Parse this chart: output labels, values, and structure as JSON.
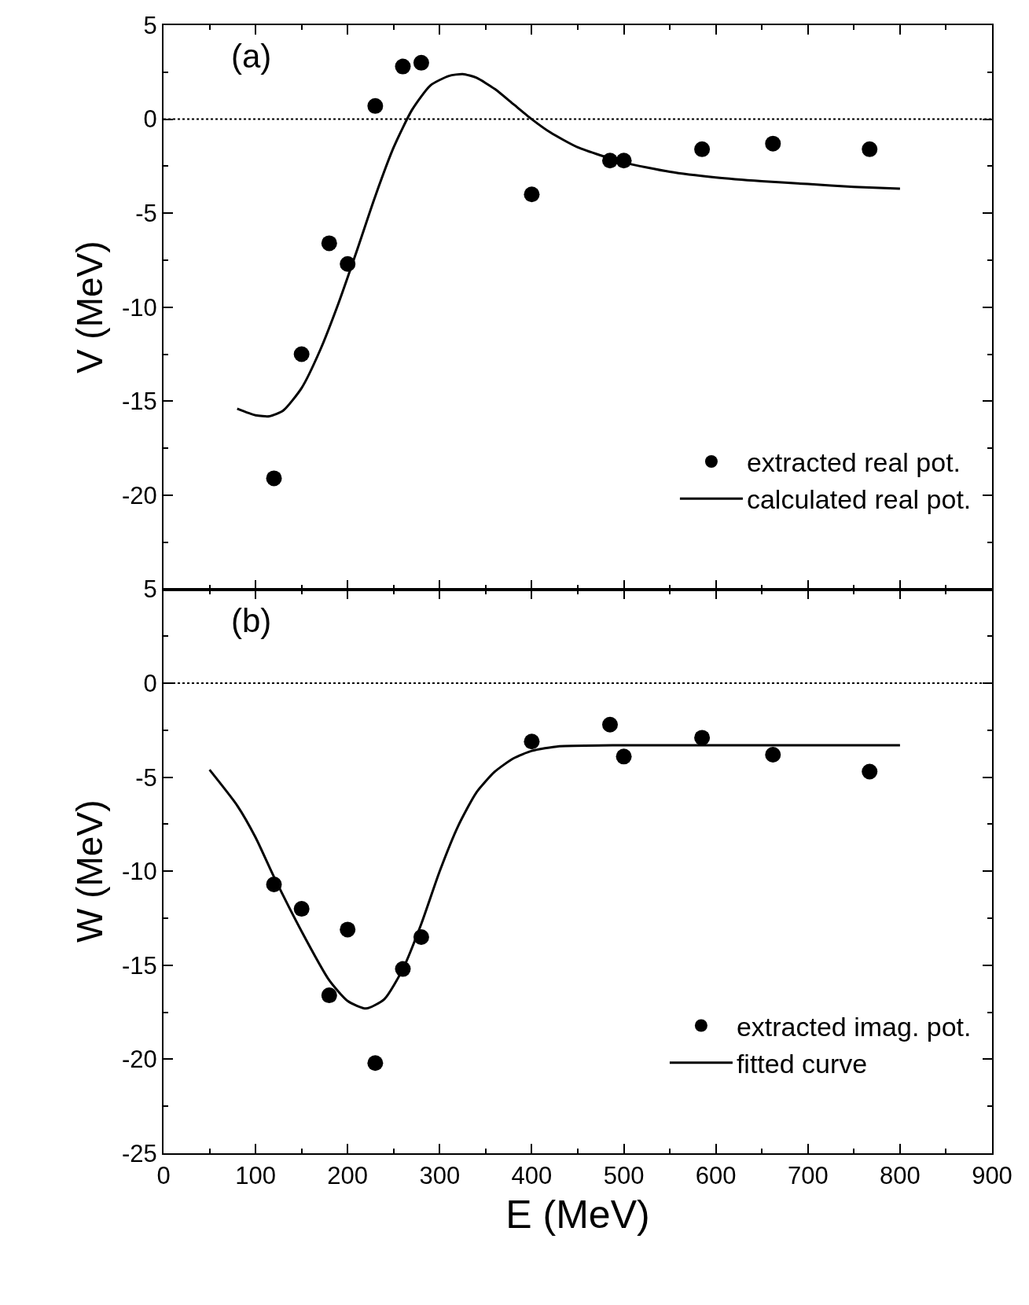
{
  "chart_data": [
    {
      "type": "scatter",
      "ylabel": "V (MeV)",
      "xlim": [
        0,
        900
      ],
      "xticks": [
        0,
        100,
        200,
        300,
        400,
        500,
        600,
        700,
        800,
        900
      ],
      "ylim": [
        -25,
        5
      ],
      "yticks": [
        5,
        0,
        -5,
        -10,
        -15,
        -20,
        {
          "value": -25,
          "label": null
        }
      ],
      "tick_labels": "y",
      "legend": "bottom right",
      "annotations": [
        "(a)"
      ],
      "ref_lines": [
        {
          "axis": "y",
          "value": 0,
          "color": "#000000",
          "line_style": "dotted"
        }
      ],
      "series": [
        {
          "name": "extracted real pot.",
          "marker": "circle",
          "color": "#000000",
          "x": [
            120,
            150,
            180,
            200,
            230,
            260,
            280,
            400,
            485,
            500,
            585,
            662,
            767
          ],
          "values": [
            -19.1,
            -12.5,
            -6.6,
            -7.7,
            0.7,
            2.8,
            3.0,
            -4.0,
            -2.2,
            -2.2,
            -1.6,
            -1.3,
            -1.6
          ]
        },
        {
          "name": "calculated real pot.",
          "type": "line",
          "line_style": "solid",
          "color": "#000000",
          "x": [
            80,
            100,
            115,
            130,
            150,
            170,
            190,
            210,
            230,
            250,
            270,
            290,
            310,
            325,
            340,
            360,
            380,
            400,
            420,
            450,
            500,
            550,
            600,
            650,
            700,
            750,
            800
          ],
          "values": [
            -15.4,
            -15.75,
            -15.8,
            -15.5,
            -14.3,
            -12.3,
            -9.8,
            -7.0,
            -4.1,
            -1.5,
            0.5,
            1.8,
            2.3,
            2.4,
            2.2,
            1.6,
            0.8,
            0.0,
            -0.7,
            -1.5,
            -2.3,
            -2.8,
            -3.1,
            -3.3,
            -3.45,
            -3.6,
            -3.7
          ]
        }
      ]
    },
    {
      "type": "scatter",
      "ylabel": "W (MeV)",
      "xlabel": "E (MeV)",
      "xlim": [
        0,
        900
      ],
      "xticks": [
        0,
        100,
        200,
        300,
        400,
        500,
        600,
        700,
        800,
        900
      ],
      "ylim": [
        -25,
        5
      ],
      "yticks": [
        5,
        0,
        -5,
        -10,
        -15,
        -20,
        -25
      ],
      "legend": "bottom right",
      "annotations": [
        "(b)"
      ],
      "ref_lines": [
        {
          "axis": "y",
          "value": 0,
          "color": "#000000",
          "line_style": "dotted"
        }
      ],
      "series": [
        {
          "name": "extracted imag. pot.",
          "marker": "circle",
          "color": "#000000",
          "x": [
            120,
            150,
            180,
            200,
            230,
            260,
            280,
            400,
            485,
            500,
            585,
            662,
            767
          ],
          "values": [
            -10.7,
            -12.0,
            -16.6,
            -13.1,
            -20.2,
            -15.2,
            -13.5,
            -3.1,
            -2.2,
            -3.9,
            -2.9,
            -3.8,
            -4.7
          ]
        },
        {
          "name": "fitted curve",
          "type": "line",
          "line_style": "solid",
          "color": "#000000",
          "x": [
            50,
            80,
            100,
            120,
            150,
            180,
            200,
            220,
            240,
            260,
            280,
            300,
            320,
            340,
            360,
            380,
            400,
            430,
            500,
            600,
            700,
            800
          ],
          "values": [
            -4.6,
            -6.5,
            -8.2,
            -10.3,
            -13.2,
            -15.8,
            -16.9,
            -17.3,
            -16.8,
            -15.2,
            -12.8,
            -10.0,
            -7.6,
            -5.8,
            -4.7,
            -4.0,
            -3.6,
            -3.35,
            -3.3,
            -3.3,
            -3.3,
            -3.3
          ]
        }
      ]
    }
  ]
}
